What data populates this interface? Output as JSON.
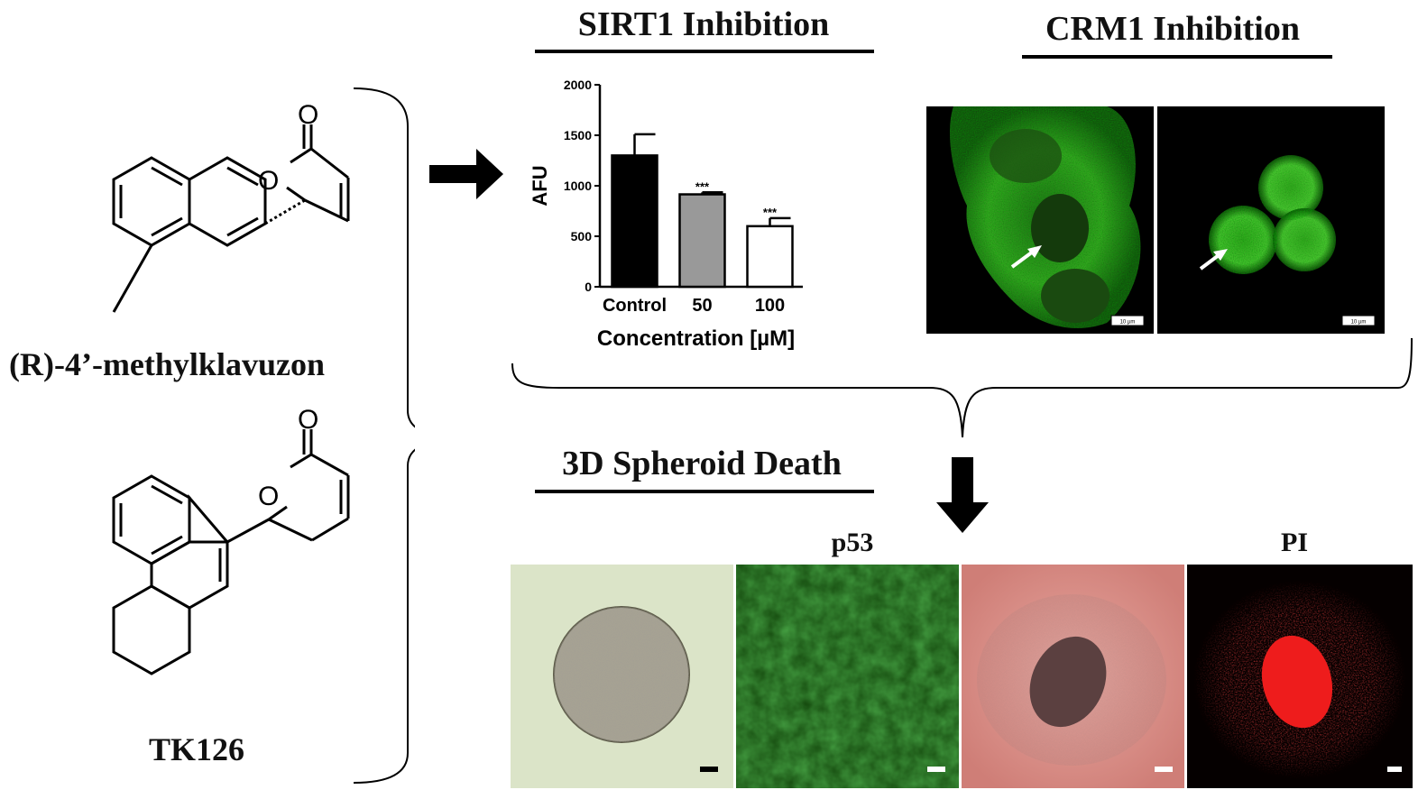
{
  "compounds": [
    {
      "name": "(R)-4’-methylklavuzon",
      "oxygen_labels": [
        "O",
        "O"
      ]
    },
    {
      "name": "TK126",
      "oxygen_labels": [
        "O",
        "O"
      ]
    }
  ],
  "sirt1": {
    "title": "SIRT1 Inhibition",
    "chart_data": {
      "type": "bar",
      "categories": [
        "Control",
        "50",
        "100"
      ],
      "values": [
        1300,
        915,
        600
      ],
      "errors": [
        210,
        20,
        80
      ],
      "significance": [
        "",
        "***",
        "***"
      ],
      "ylabel": "AFU",
      "xlabel": "Concentration [µM]",
      "ylim": [
        0,
        2000
      ],
      "yticks": [
        "0",
        "500",
        "1000",
        "1500",
        "2000"
      ],
      "bar_colors": [
        "#000000",
        "#999999",
        "#ffffff"
      ]
    }
  },
  "crm1": {
    "title": "CRM1 Inhibition",
    "scalebar_labels": [
      "10 µm",
      "10 µm"
    ]
  },
  "spheroid": {
    "title": "3D Spheroid Death",
    "p53_label": "p53",
    "pi_label": "PI"
  },
  "colors": {
    "gfp_green": "#5fd63a",
    "pi_red": "#e01818",
    "brightfield_green": "#d8e2c6",
    "brightfield_pink": "#d98a84"
  }
}
